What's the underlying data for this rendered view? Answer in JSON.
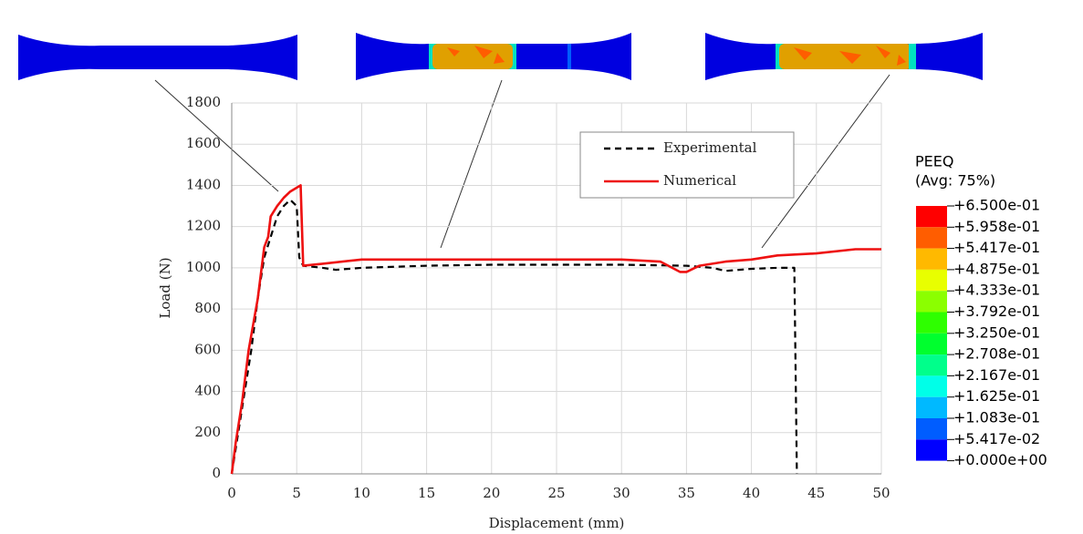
{
  "chart_data": {
    "type": "line",
    "x_label": "Displacement (mm)",
    "y_label": "Load (N)",
    "xlim": [
      0,
      50
    ],
    "ylim": [
      0,
      1800
    ],
    "xticks": [
      0,
      5,
      10,
      15,
      20,
      25,
      30,
      35,
      40,
      45,
      50
    ],
    "yticks": [
      0,
      200,
      400,
      600,
      800,
      1000,
      1200,
      1400,
      1600,
      1800
    ],
    "grid": true,
    "legend": "upper right",
    "series": [
      {
        "name": "Experimental",
        "color": "#000000",
        "dash": true,
        "x": [
          0,
          0.5,
          1,
          1.5,
          2,
          2.5,
          3,
          3.5,
          4,
          4.5,
          5,
          5.2,
          5.5,
          7,
          8,
          10,
          15,
          20,
          25,
          30,
          35,
          37,
          38,
          40,
          42,
          43.3,
          43.5
        ],
        "values": [
          0,
          200,
          400,
          600,
          850,
          1050,
          1150,
          1250,
          1300,
          1330,
          1300,
          1050,
          1010,
          1000,
          990,
          1000,
          1010,
          1015,
          1015,
          1015,
          1010,
          1000,
          985,
          995,
          1000,
          1000,
          0
        ]
      },
      {
        "name": "Numerical",
        "color": "#ee1111",
        "dash": false,
        "x": [
          0,
          0.3,
          0.8,
          1.3,
          2,
          2.5,
          2.8,
          3,
          3.5,
          4,
          4.5,
          5.3,
          5.5,
          7,
          10,
          15,
          20,
          25,
          30,
          33,
          34.5,
          35,
          36,
          38,
          40,
          42,
          45,
          48,
          50
        ],
        "values": [
          0,
          150,
          350,
          600,
          850,
          1100,
          1150,
          1250,
          1300,
          1340,
          1370,
          1400,
          1010,
          1020,
          1040,
          1040,
          1040,
          1040,
          1040,
          1030,
          980,
          980,
          1010,
          1030,
          1040,
          1060,
          1070,
          1090,
          1090
        ]
      }
    ],
    "colorbar": {
      "title": "PEEQ",
      "subtitle": "(Avg: 75%)",
      "labels": [
        "+6.500e-01",
        "+5.958e-01",
        "+5.417e-01",
        "+4.875e-01",
        "+4.333e-01",
        "+3.792e-01",
        "+3.250e-01",
        "+2.708e-01",
        "+2.167e-01",
        "+1.625e-01",
        "+1.083e-01",
        "+5.417e-02",
        "+0.000e+00"
      ],
      "colors": [
        "#ff0000",
        "#ff5d00",
        "#ffb900",
        "#e8ff00",
        "#8bff00",
        "#2eff00",
        "#00ff2e",
        "#00ff8b",
        "#00ffe8",
        "#00b9ff",
        "#005dff",
        "#0000ff"
      ]
    }
  }
}
